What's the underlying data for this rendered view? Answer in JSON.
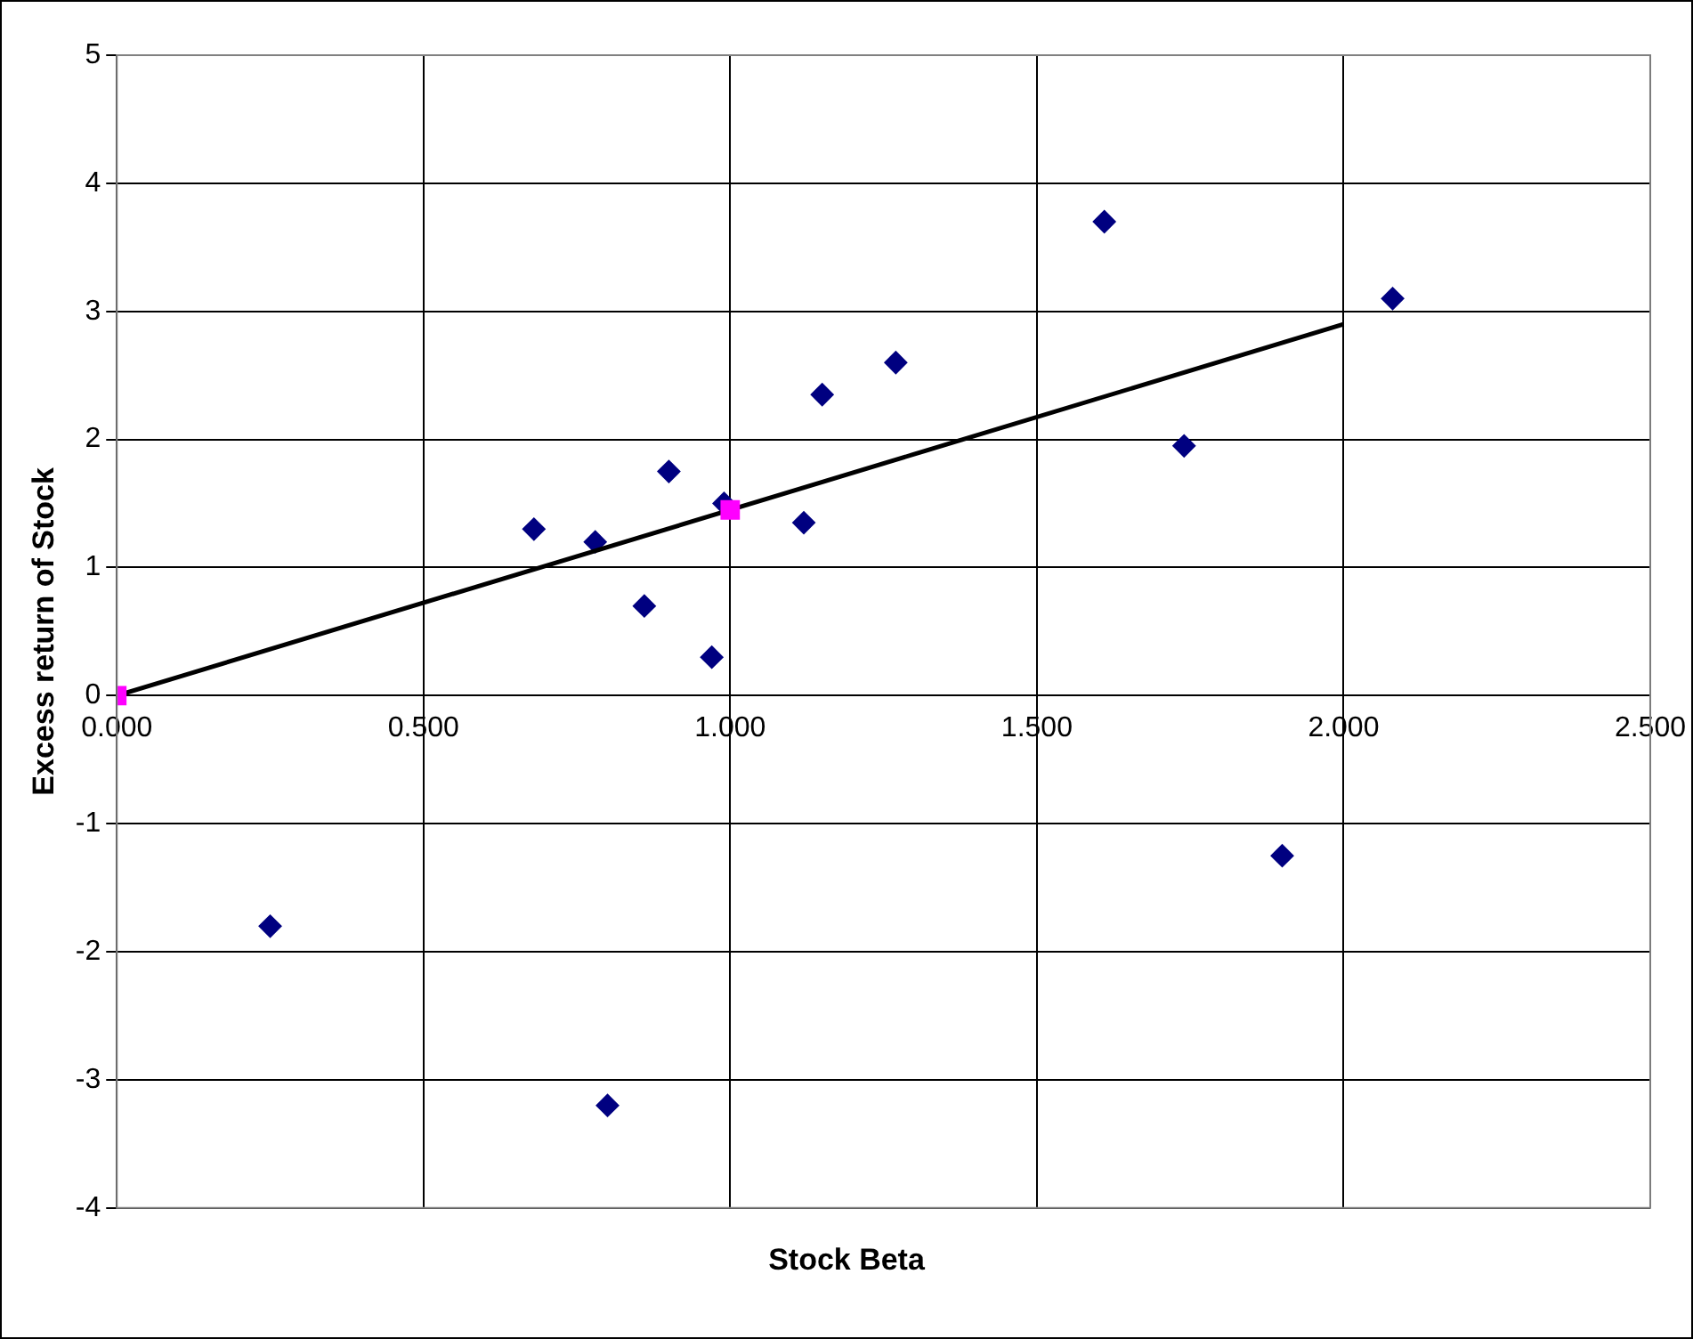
{
  "chart_data": {
    "type": "scatter",
    "xlabel": "Stock Beta",
    "ylabel": "Excess return of Stock",
    "xlim": [
      0,
      2.5
    ],
    "ylim": [
      -4,
      5
    ],
    "xticks": [
      {
        "value": 0,
        "label": "0.000"
      },
      {
        "value": 0.5,
        "label": "0.500"
      },
      {
        "value": 1,
        "label": "1.000"
      },
      {
        "value": 1.5,
        "label": "1.500"
      },
      {
        "value": 2,
        "label": "2.000"
      },
      {
        "value": 2.5,
        "label": "2.500"
      }
    ],
    "yticks": [
      -4,
      -3,
      -2,
      -1,
      0,
      1,
      2,
      3,
      4,
      5
    ],
    "grid": true,
    "legend": false,
    "series": [
      {
        "color": "#000080",
        "marker": "diamond",
        "x": [
          0.25,
          0.68,
          0.78,
          0.9,
          0.86,
          0.97,
          0.99,
          1.12,
          1.15,
          1.27,
          1.61,
          1.74,
          1.9,
          2.08,
          0.8
        ],
        "values": [
          -1.8,
          1.3,
          1.2,
          1.75,
          0.7,
          0.3,
          1.5,
          1.35,
          2.35,
          2.6,
          3.7,
          1.95,
          -1.25,
          3.1,
          -3.2
        ]
      },
      {
        "type": "line",
        "color": "#000000",
        "marker": "none",
        "x": [
          0,
          2
        ],
        "values": [
          0,
          2.9
        ]
      },
      {
        "color": "#ff00ff",
        "marker": "square",
        "x": [
          0,
          1
        ],
        "values": [
          0,
          1.45
        ]
      }
    ]
  }
}
